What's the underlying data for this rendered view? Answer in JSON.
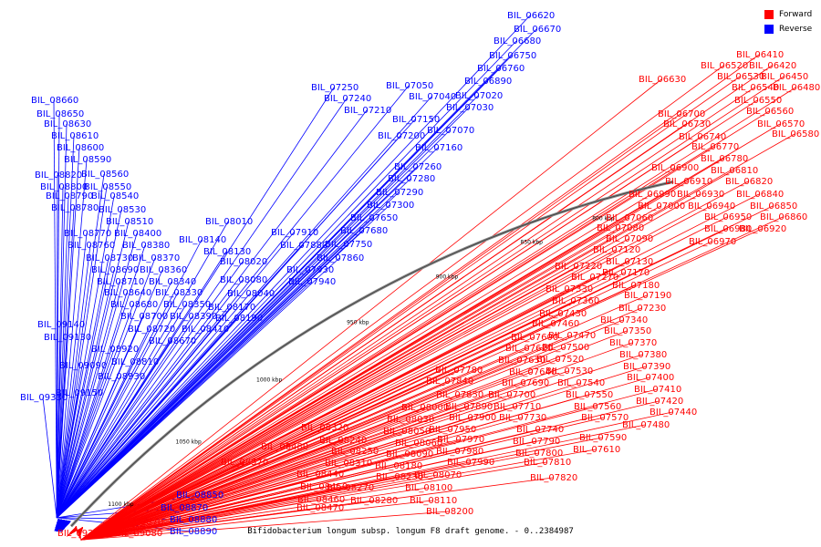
{
  "legend": {
    "forward_label": "Forward",
    "forward_color": "#ff0000",
    "reverse_label": "Reverse",
    "reverse_color": "#0000ff"
  },
  "caption": "Bifidobacterium longum subsp. longum F8 draft genome. - 0..2384987",
  "scale_labels": [
    "800 kbp",
    "850 kbp",
    "900 kbp",
    "950 kbp",
    "1000 kbp",
    "1050 kbp",
    "1100 kbp"
  ],
  "reverse_genes": [
    "BIL_06620",
    "BIL_06670",
    "BIL_06680",
    "BIL_06750",
    "BIL_06760",
    "BIL_06890",
    "BIL_07050",
    "BIL_07250",
    "BIL_07040",
    "BIL_07240",
    "BIL_07020",
    "BIL_07210",
    "BIL_07030",
    "BIL_07150",
    "BIL_07070",
    "BIL_07200",
    "BIL_07160",
    "BIL_07260",
    "BIL_07280",
    "BIL_07290",
    "BIL_07300",
    "BIL_07650",
    "BIL_07680",
    "BIL_07750",
    "BIL_07860",
    "BIL_07910",
    "BIL_07880",
    "BIL_07930",
    "BIL_07940",
    "BIL_08010",
    "BIL_08140",
    "BIL_08130",
    "BIL_08020",
    "BIL_08080",
    "BIL_08040",
    "BIL_08170",
    "BIL_08190",
    "BIL_08660",
    "BIL_08650",
    "BIL_08630",
    "BIL_08610",
    "BIL_08600",
    "BIL_08590",
    "BIL_08820",
    "BIL_08560",
    "BIL_08800",
    "BIL_08550",
    "BIL_08790",
    "BIL_08540",
    "BIL_08780",
    "BIL_08530",
    "BIL_08510",
    "BIL_08770",
    "BIL_08400",
    "BIL_08760",
    "BIL_08380",
    "BIL_08730",
    "BIL_08370",
    "BIL_08690",
    "BIL_08360",
    "BIL_08710",
    "BIL_08340",
    "BIL_08640",
    "BIL_08330",
    "BIL_08680",
    "BIL_08350",
    "BIL_08700",
    "BIL_08390",
    "BIL_08720",
    "BIL_08410",
    "BIL_08670",
    "BIL_09140",
    "BIL_09130",
    "BIL_08920",
    "BIL_08810",
    "BIL_09090",
    "BIL_08930",
    "BIL_09150",
    "BIL_09330",
    "BIL_08850",
    "BIL_08870",
    "BIL_08880",
    "BIL_08890"
  ],
  "forward_genes": [
    "BIL_06410",
    "BIL_06520",
    "BIL_06420",
    "BIL_06530",
    "BIL_06450",
    "BIL_06540",
    "BIL_06480",
    "BIL_06630",
    "BIL_06550",
    "BIL_06560",
    "BIL_06700",
    "BIL_06570",
    "BIL_06730",
    "BIL_06580",
    "BIL_06740",
    "BIL_06770",
    "BIL_06780",
    "BIL_06900",
    "BIL_06810",
    "BIL_06910",
    "BIL_06820",
    "BIL_06990",
    "BIL_06930",
    "BIL_06840",
    "BIL_07000",
    "BIL_06940",
    "BIL_06850",
    "BIL_07060",
    "BIL_06950",
    "BIL_06860",
    "BIL_07080",
    "BIL_06980",
    "BIL_06920",
    "BIL_07090",
    "BIL_06970",
    "BIL_07120",
    "BIL_07130",
    "BIL_07220",
    "BIL_07170",
    "BIL_07270",
    "BIL_07180",
    "BIL_07330",
    "BIL_07190",
    "BIL_07360",
    "BIL_07230",
    "BIL_07430",
    "BIL_07340",
    "BIL_07460",
    "BIL_07350",
    "BIL_07600",
    "BIL_07470",
    "BIL_07370",
    "BIL_07620",
    "BIL_07500",
    "BIL_07380",
    "BIL_07630",
    "BIL_07520",
    "BIL_07390",
    "BIL_07780",
    "BIL_07640",
    "BIL_07530",
    "BIL_07400",
    "BIL_07840",
    "BIL_07690",
    "BIL_07540",
    "BIL_07410",
    "BIL_07850",
    "BIL_07700",
    "BIL_07550",
    "BIL_07420",
    "BIL_08000",
    "BIL_07890",
    "BIL_07710",
    "BIL_07560",
    "BIL_07440",
    "BIL_08030",
    "BIL_07900",
    "BIL_07730",
    "BIL_07570",
    "BIL_07480",
    "BIL_08050",
    "BIL_07950",
    "BIL_07740",
    "BIL_08320",
    "BIL_08060",
    "BIL_07970",
    "BIL_07790",
    "BIL_07590",
    "BIL_08240",
    "BIL_08090",
    "BIL_07980",
    "BIL_07800",
    "BIL_07610",
    "BIL_08250",
    "BIL_08180",
    "BIL_07990",
    "BIL_07810",
    "BIL_08310",
    "BIL_08230",
    "BIL_08070",
    "BIL_07820",
    "BIL_08440",
    "BIL_08270",
    "BIL_08100",
    "BIL_08450",
    "BIL_08280",
    "BIL_08110",
    "BIL_08460",
    "BIL_08200",
    "BIL_08470",
    "BIL_08480",
    "BIL_08570",
    "BIL_09070",
    "BIL_09080",
    "BIL_09240"
  ]
}
